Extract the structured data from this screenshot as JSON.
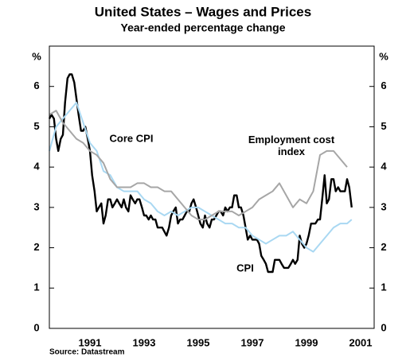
{
  "chart_data": {
    "type": "line",
    "title": "United States – Wages and Prices",
    "subtitle": "Year-ended percentage change",
    "y_label": "%",
    "y2_label": "%",
    "source": "Source: Datastream",
    "annotations": [
      "Core CPI",
      "Employment cost index",
      "CPI"
    ],
    "xlim": [
      1990,
      2002
    ],
    "xticks": [
      {
        "value": 1991.5,
        "label": "1991"
      },
      {
        "value": 1993.5,
        "label": "1993"
      },
      {
        "value": 1995.5,
        "label": "1995"
      },
      {
        "value": 1997.5,
        "label": "1997"
      },
      {
        "value": 1999.5,
        "label": "1999"
      },
      {
        "value": 2001.5,
        "label": "2001"
      }
    ],
    "ylim": [
      0,
      7
    ],
    "yticks": [
      0,
      1,
      2,
      3,
      4,
      5,
      6
    ],
    "y2lim": [
      0,
      7
    ],
    "y2ticks": [
      0,
      1,
      2,
      3,
      4,
      5,
      6
    ],
    "series": [
      {
        "name": "CPI",
        "color": "#000000",
        "x": [
          1990.0,
          1990.08,
          1990.17,
          1990.25,
          1990.33,
          1990.42,
          1990.5,
          1990.58,
          1990.67,
          1990.75,
          1990.83,
          1990.92,
          1991.0,
          1991.08,
          1991.17,
          1991.25,
          1991.33,
          1991.42,
          1991.5,
          1991.58,
          1991.67,
          1991.75,
          1991.83,
          1991.92,
          1992.0,
          1992.08,
          1992.17,
          1992.25,
          1992.33,
          1992.42,
          1992.5,
          1992.58,
          1992.67,
          1992.75,
          1992.83,
          1992.92,
          1993.0,
          1993.08,
          1993.17,
          1993.25,
          1993.33,
          1993.42,
          1993.5,
          1993.58,
          1993.67,
          1993.75,
          1993.83,
          1993.92,
          1994.0,
          1994.08,
          1994.17,
          1994.25,
          1994.33,
          1994.42,
          1994.5,
          1994.58,
          1994.67,
          1994.75,
          1994.83,
          1994.92,
          1995.0,
          1995.08,
          1995.17,
          1995.25,
          1995.33,
          1995.42,
          1995.5,
          1995.58,
          1995.67,
          1995.75,
          1995.83,
          1995.92,
          1996.0,
          1996.08,
          1996.17,
          1996.25,
          1996.33,
          1996.42,
          1996.5,
          1996.58,
          1996.67,
          1996.75,
          1996.83,
          1996.92,
          1997.0,
          1997.08,
          1997.17,
          1997.25,
          1997.33,
          1997.42,
          1997.5,
          1997.58,
          1997.67,
          1997.75,
          1997.83,
          1997.92,
          1998.0,
          1998.08,
          1998.17,
          1998.25,
          1998.33,
          1998.42,
          1998.5,
          1998.58,
          1998.67,
          1998.75,
          1998.83,
          1998.92,
          1999.0,
          1999.08,
          1999.17,
          1999.25,
          1999.33,
          1999.42,
          1999.5,
          1999.58,
          1999.67,
          1999.75,
          1999.83,
          1999.92,
          2000.0,
          2000.08,
          2000.17,
          2000.25,
          2000.33,
          2000.42,
          2000.5,
          2000.58,
          2000.67,
          2000.75,
          2000.83,
          2000.92,
          2001.0,
          2001.08,
          2001.17
        ],
        "values": [
          5.2,
          5.3,
          5.2,
          4.7,
          4.4,
          4.7,
          4.8,
          5.6,
          6.2,
          6.3,
          6.3,
          6.1,
          5.7,
          5.3,
          4.9,
          4.9,
          5.0,
          4.7,
          4.4,
          3.8,
          3.4,
          2.9,
          3.0,
          3.1,
          2.6,
          2.8,
          3.2,
          3.2,
          3.0,
          3.1,
          3.2,
          3.1,
          3.0,
          3.2,
          3.0,
          2.9,
          3.3,
          3.2,
          3.1,
          3.2,
          3.2,
          3.0,
          2.8,
          2.8,
          2.7,
          2.8,
          2.7,
          2.7,
          2.5,
          2.5,
          2.5,
          2.4,
          2.3,
          2.5,
          2.8,
          2.9,
          3.0,
          2.6,
          2.7,
          2.7,
          2.8,
          2.9,
          2.9,
          3.1,
          3.2,
          3.0,
          2.8,
          2.6,
          2.5,
          2.8,
          2.6,
          2.5,
          2.7,
          2.7,
          2.8,
          2.9,
          2.9,
          2.8,
          3.0,
          2.9,
          3.0,
          3.0,
          3.3,
          3.3,
          3.0,
          3.0,
          2.8,
          2.5,
          2.2,
          2.3,
          2.2,
          2.2,
          2.2,
          2.1,
          1.8,
          1.7,
          1.6,
          1.4,
          1.4,
          1.4,
          1.7,
          1.7,
          1.7,
          1.6,
          1.5,
          1.5,
          1.5,
          1.6,
          1.7,
          1.6,
          1.7,
          2.3,
          2.1,
          2.0,
          2.1,
          2.3,
          2.6,
          2.6,
          2.6,
          2.7,
          2.7,
          3.2,
          3.8,
          3.1,
          3.2,
          3.7,
          3.7,
          3.4,
          3.5,
          3.4,
          3.4,
          3.4,
          3.7,
          3.5,
          3.0
        ]
      },
      {
        "name": "Core CPI",
        "color": "#a9d8f2",
        "x": [
          1990.0,
          1990.25,
          1990.5,
          1990.75,
          1991.0,
          1991.25,
          1991.5,
          1991.75,
          1992.0,
          1992.25,
          1992.5,
          1992.75,
          1993.0,
          1993.25,
          1993.5,
          1993.75,
          1994.0,
          1994.25,
          1994.5,
          1994.75,
          1995.0,
          1995.25,
          1995.5,
          1995.75,
          1996.0,
          1996.25,
          1996.5,
          1996.75,
          1997.0,
          1997.25,
          1997.5,
          1997.75,
          1998.0,
          1998.25,
          1998.5,
          1998.75,
          1999.0,
          1999.25,
          1999.5,
          1999.75,
          2000.0,
          2000.25,
          2000.5,
          2000.75,
          2001.0,
          2001.17
        ],
        "values": [
          4.4,
          5.0,
          5.2,
          5.4,
          5.6,
          5.1,
          4.6,
          4.4,
          3.9,
          3.8,
          3.5,
          3.4,
          3.4,
          3.4,
          3.2,
          3.1,
          2.9,
          2.8,
          2.9,
          2.8,
          2.9,
          3.0,
          3.0,
          2.9,
          2.8,
          2.7,
          2.6,
          2.6,
          2.5,
          2.5,
          2.3,
          2.2,
          2.1,
          2.2,
          2.3,
          2.3,
          2.4,
          2.2,
          2.0,
          1.9,
          2.1,
          2.3,
          2.5,
          2.6,
          2.6,
          2.7
        ]
      },
      {
        "name": "Employment cost index",
        "color": "#a6a6a6",
        "x": [
          1990.0,
          1990.25,
          1990.5,
          1990.75,
          1991.0,
          1991.25,
          1991.5,
          1991.75,
          1992.0,
          1992.25,
          1992.5,
          1992.75,
          1993.0,
          1993.25,
          1993.5,
          1993.75,
          1994.0,
          1994.25,
          1994.5,
          1994.75,
          1995.0,
          1995.25,
          1995.5,
          1995.75,
          1996.0,
          1996.25,
          1996.5,
          1996.75,
          1997.0,
          1997.25,
          1997.5,
          1997.75,
          1998.0,
          1998.25,
          1998.5,
          1998.75,
          1999.0,
          1999.25,
          1999.5,
          1999.75,
          2000.0,
          2000.25,
          2000.5,
          2000.75,
          2001.0
        ],
        "values": [
          5.3,
          5.4,
          5.1,
          4.9,
          4.7,
          4.6,
          4.4,
          4.3,
          4.1,
          3.7,
          3.5,
          3.5,
          3.5,
          3.6,
          3.6,
          3.5,
          3.5,
          3.4,
          3.4,
          3.2,
          3.0,
          2.8,
          2.7,
          2.7,
          2.8,
          2.9,
          2.9,
          2.9,
          2.8,
          2.9,
          3.0,
          3.2,
          3.3,
          3.4,
          3.6,
          3.3,
          3.0,
          3.2,
          3.1,
          3.4,
          4.3,
          4.4,
          4.4,
          4.2,
          4.0
        ]
      }
    ]
  }
}
